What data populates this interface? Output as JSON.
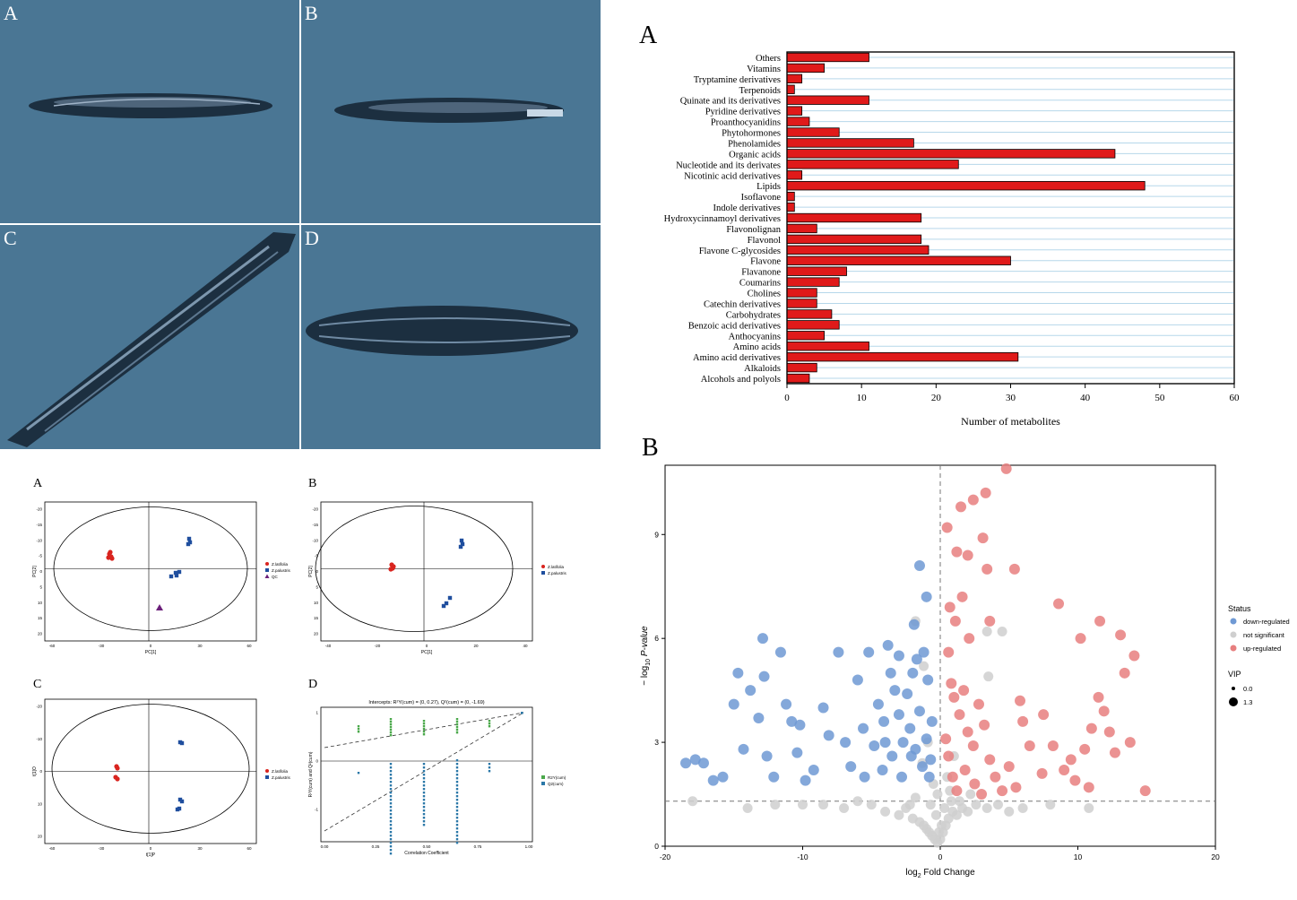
{
  "photos": {
    "labels": [
      "A",
      "B",
      "C",
      "D"
    ]
  },
  "bottom_panels": {
    "labels": [
      "A",
      "B",
      "C",
      "D"
    ]
  },
  "chart_data": [
    {
      "panel": "A",
      "type": "bar",
      "orientation": "horizontal",
      "categories": [
        "Others",
        "Vitamins",
        "Tryptamine derivatives",
        "Terpenoids",
        "Quinate and its derivatives",
        "Pyridine derivatives",
        "Proanthocyanidins",
        "Phytohormones",
        "Phenolamides",
        "Organic acids",
        "Nucleotide and its derivates",
        "Nicotinic acid derivatives",
        "Lipids",
        "Isoflavone",
        "Indole derivatives",
        "Hydroxycinnamoyl derivatives",
        "Flavonolignan",
        "Flavonol",
        "Flavone C-glycosides",
        "Flavone",
        "Flavanone",
        "Coumarins",
        "Cholines",
        "Catechin derivatives",
        "Carbohydrates",
        "Benzoic acid derivatives",
        "Anthocyanins",
        "Amino acids",
        "Amino acid derivatives",
        "Alkaloids",
        "Alcohols and polyols"
      ],
      "values": [
        11,
        5,
        2,
        1,
        11,
        2,
        3,
        7,
        17,
        44,
        23,
        2,
        48,
        1,
        1,
        18,
        4,
        18,
        19,
        30,
        8,
        7,
        4,
        4,
        6,
        7,
        5,
        11,
        31,
        4,
        3
      ],
      "xlabel": "Number of metabolites",
      "xlim": [
        0,
        60
      ],
      "xticks": [
        "0",
        "10",
        "20",
        "30",
        "40",
        "50",
        "60"
      ],
      "bar_color": "#e01a1a",
      "grid_color": "#b6d7ea"
    },
    {
      "panel": "B",
      "type": "scatter",
      "xlabel_main": "log",
      "xlabel_sub": "2",
      "xlabel_rest": " Fold Change",
      "ylabel_main": "− log",
      "ylabel_sub": "10",
      "ylabel_rest": " P-value",
      "xlim": [
        -20,
        20
      ],
      "ylim": [
        0,
        11
      ],
      "xticks": [
        "-20",
        "-10",
        "0",
        "10",
        "20"
      ],
      "yticks": [
        "0",
        "3",
        "6",
        "9"
      ],
      "legend": {
        "status_title": "Status",
        "status_items": [
          {
            "label": "down-regulated",
            "color": "#6f99d4"
          },
          {
            "label": "not significant",
            "color": "#cfcfcf"
          },
          {
            "label": "up-regulated",
            "color": "#e77f7f"
          }
        ],
        "vip_title": "VIP",
        "vip_items": [
          "0.0",
          "1.3"
        ]
      },
      "thresholds": {
        "x": 0,
        "y": 1.3
      },
      "down": [
        [
          -18.5,
          2.4
        ],
        [
          -17.8,
          2.5
        ],
        [
          -17.2,
          2.4
        ],
        [
          -16.5,
          1.9
        ],
        [
          -15.8,
          2.0
        ],
        [
          -15,
          4.1
        ],
        [
          -14.7,
          5.0
        ],
        [
          -14.3,
          2.8
        ],
        [
          -13.8,
          4.5
        ],
        [
          -13.2,
          3.7
        ],
        [
          -12.9,
          6.0
        ],
        [
          -12.8,
          4.9
        ],
        [
          -12.6,
          2.6
        ],
        [
          -12.1,
          2.0
        ],
        [
          -11.6,
          5.6
        ],
        [
          -11.2,
          4.1
        ],
        [
          -10.8,
          3.6
        ],
        [
          -10.4,
          2.7
        ],
        [
          -10.2,
          3.5
        ],
        [
          -9.8,
          1.9
        ],
        [
          -9.2,
          2.2
        ],
        [
          -8.5,
          4.0
        ],
        [
          -8.1,
          3.2
        ],
        [
          -7.4,
          5.6
        ],
        [
          -6.9,
          3.0
        ],
        [
          -6.5,
          2.3
        ],
        [
          -6.0,
          4.8
        ],
        [
          -5.6,
          3.4
        ],
        [
          -5.2,
          5.6
        ],
        [
          -4.8,
          2.9
        ],
        [
          -4.5,
          4.1
        ],
        [
          -4.1,
          3.6
        ],
        [
          -3.8,
          5.8
        ],
        [
          -3.6,
          5.0
        ],
        [
          -3.3,
          4.5
        ],
        [
          -3.0,
          3.8
        ],
        [
          -2.7,
          3.0
        ],
        [
          -2.4,
          4.4
        ],
        [
          -2.1,
          2.6
        ],
        [
          -1.9,
          6.4
        ],
        [
          -1.7,
          5.4
        ],
        [
          -1.5,
          3.9
        ],
        [
          -1.3,
          2.3
        ],
        [
          -1.2,
          5.6
        ],
        [
          -1.0,
          3.1
        ],
        [
          -0.9,
          4.8
        ],
        [
          -0.8,
          2.0
        ],
        [
          -0.6,
          3.6
        ],
        [
          -1.5,
          8.1
        ],
        [
          -1.0,
          7.2
        ],
        [
          -2.8,
          2.0
        ],
        [
          -3.5,
          2.6
        ],
        [
          -4.2,
          2.2
        ],
        [
          -2.2,
          3.4
        ],
        [
          -1.8,
          2.8
        ],
        [
          -0.7,
          2.5
        ],
        [
          -3.0,
          5.5
        ],
        [
          -2.0,
          5.0
        ],
        [
          -4.0,
          3.0
        ],
        [
          -5.5,
          2.0
        ]
      ],
      "up": [
        [
          0.5,
          9.2
        ],
        [
          1.2,
          8.5
        ],
        [
          1.5,
          9.8
        ],
        [
          2.0,
          8.4
        ],
        [
          2.4,
          10.0
        ],
        [
          3.1,
          8.9
        ],
        [
          3.3,
          10.2
        ],
        [
          3.4,
          8.0
        ],
        [
          4.8,
          10.9
        ],
        [
          5.4,
          8.0
        ],
        [
          0.7,
          6.9
        ],
        [
          1.1,
          6.5
        ],
        [
          1.6,
          7.2
        ],
        [
          2.1,
          6.0
        ],
        [
          3.6,
          6.5
        ],
        [
          0.6,
          5.6
        ],
        [
          0.8,
          4.7
        ],
        [
          1.0,
          4.3
        ],
        [
          1.4,
          3.8
        ],
        [
          1.7,
          4.5
        ],
        [
          2.0,
          3.3
        ],
        [
          2.4,
          2.9
        ],
        [
          2.8,
          4.1
        ],
        [
          3.2,
          3.5
        ],
        [
          3.6,
          2.5
        ],
        [
          4.0,
          2.0
        ],
        [
          4.5,
          1.6
        ],
        [
          5.0,
          2.3
        ],
        [
          5.5,
          1.7
        ],
        [
          0.4,
          3.1
        ],
        [
          0.6,
          2.6
        ],
        [
          0.9,
          2.0
        ],
        [
          1.2,
          1.6
        ],
        [
          1.8,
          2.2
        ],
        [
          2.5,
          1.8
        ],
        [
          3.0,
          1.5
        ],
        [
          5.8,
          4.2
        ],
        [
          6.0,
          3.6
        ],
        [
          6.5,
          2.9
        ],
        [
          7.4,
          2.1
        ],
        [
          7.5,
          3.8
        ],
        [
          8.2,
          2.9
        ],
        [
          8.6,
          7.0
        ],
        [
          9.0,
          2.2
        ],
        [
          9.5,
          2.5
        ],
        [
          10.2,
          6.0
        ],
        [
          10.5,
          2.8
        ],
        [
          11.0,
          3.4
        ],
        [
          11.5,
          4.3
        ],
        [
          11.6,
          6.5
        ],
        [
          11.9,
          3.9
        ],
        [
          12.3,
          3.3
        ],
        [
          12.7,
          2.7
        ],
        [
          13.1,
          6.1
        ],
        [
          13.4,
          5.0
        ],
        [
          13.8,
          3.0
        ],
        [
          14.1,
          5.5
        ],
        [
          14.9,
          1.6
        ],
        [
          10.8,
          1.7
        ],
        [
          9.8,
          1.9
        ]
      ],
      "ns": [
        [
          -18.0,
          1.3
        ],
        [
          -14.0,
          1.1
        ],
        [
          -12.0,
          1.2
        ],
        [
          -10.0,
          1.2
        ],
        [
          -8.5,
          1.2
        ],
        [
          -7.0,
          1.1
        ],
        [
          -6.0,
          1.3
        ],
        [
          -5.0,
          1.2
        ],
        [
          -4.0,
          1.0
        ],
        [
          -3.0,
          0.9
        ],
        [
          -2.5,
          1.1
        ],
        [
          -2.0,
          0.8
        ],
        [
          -1.5,
          0.7
        ],
        [
          -1.2,
          0.6
        ],
        [
          -1.0,
          0.5
        ],
        [
          -0.8,
          0.4
        ],
        [
          -0.6,
          0.3
        ],
        [
          -0.4,
          0.2
        ],
        [
          -0.2,
          0.1
        ],
        [
          0.0,
          0.2
        ],
        [
          0.2,
          0.4
        ],
        [
          0.4,
          0.6
        ],
        [
          0.6,
          0.8
        ],
        [
          0.9,
          1.0
        ],
        [
          1.2,
          0.9
        ],
        [
          1.6,
          1.1
        ],
        [
          2.0,
          1.0
        ],
        [
          2.6,
          1.2
        ],
        [
          3.4,
          1.1
        ],
        [
          4.2,
          1.2
        ],
        [
          5.0,
          1.0
        ],
        [
          6.0,
          1.1
        ],
        [
          8.0,
          1.2
        ],
        [
          10.8,
          1.1
        ],
        [
          -0.3,
          0.9
        ],
        [
          0.3,
          1.1
        ],
        [
          -0.7,
          1.2
        ],
        [
          0.8,
          1.3
        ],
        [
          -1.8,
          1.4
        ],
        [
          2.2,
          1.5
        ],
        [
          -0.5,
          1.8
        ],
        [
          0.5,
          2.0
        ],
        [
          -1.3,
          2.4
        ],
        [
          1.0,
          2.6
        ],
        [
          -0.9,
          3.0
        ],
        [
          3.5,
          4.9
        ],
        [
          -1.2,
          5.2
        ],
        [
          3.4,
          6.2
        ],
        [
          4.5,
          6.2
        ],
        [
          -1.8,
          6.5
        ],
        [
          -0.2,
          1.5
        ],
        [
          0.1,
          0.6
        ],
        [
          -0.1,
          0.4
        ],
        [
          0.7,
          1.6
        ],
        [
          -2.2,
          1.2
        ],
        [
          1.4,
          1.3
        ]
      ]
    },
    {
      "panel": "bottom-A",
      "type": "scatter",
      "xlabel": "PC[1]",
      "ylabel": "PC[2]",
      "legend": [
        "Z.latifolia",
        "Z.palustris",
        "QC"
      ],
      "xticks": [
        "-60",
        "-30",
        "0",
        "30",
        "60"
      ],
      "yticks": [
        "-20",
        "-15",
        "-10",
        "-5",
        "0",
        "5",
        "10",
        "15",
        "20"
      ]
    },
    {
      "panel": "bottom-B",
      "type": "scatter",
      "xlabel": "PC[1]",
      "ylabel": "PC[2]",
      "legend": [
        "Z.latifolia",
        "Z.palustris"
      ],
      "xticks": [
        "-40",
        "-20",
        "0",
        "20",
        "40"
      ],
      "yticks": [
        "-20",
        "-15",
        "-10",
        "-5",
        "0",
        "5",
        "10",
        "15",
        "20"
      ]
    },
    {
      "panel": "bottom-C",
      "type": "scatter",
      "xlabel": "t[1]P",
      "ylabel": "t[1]O",
      "legend": [
        "Z.latifolia",
        "Z.palustris"
      ],
      "xticks": [
        "-60",
        "-30",
        "0",
        "30",
        "60"
      ],
      "yticks": [
        "-20",
        "-10",
        "0",
        "10",
        "20"
      ]
    },
    {
      "panel": "bottom-D",
      "type": "scatter",
      "title": "Intercepts: R²Y(cum) = (0, 0.27), Q²(cum) = (0, -1.69)",
      "xlabel": "Correlation Coefficient",
      "ylabel": "R²Y(cum) and Q²(cum)",
      "legend": [
        "R2Y(cum)",
        "Q2(cum)"
      ],
      "xticks": [
        "0.00",
        "0.25",
        "0.50",
        "0.75",
        "1.00"
      ],
      "yticks": [
        "1",
        "0",
        "-1"
      ]
    }
  ]
}
